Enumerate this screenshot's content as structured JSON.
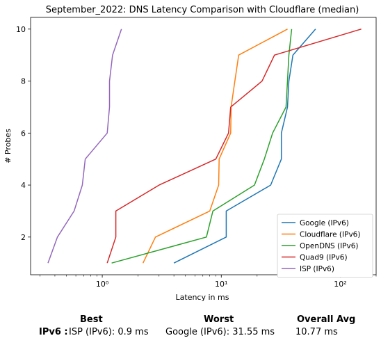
{
  "chart_data": {
    "type": "line",
    "title": "September_2022: DNS Latency Comparison with Cloudflare (median)",
    "xlabel": "Latency in ms",
    "ylabel": "# Probes",
    "xscale": "log",
    "xlim": [
      0.25,
      200
    ],
    "ylim": [
      0.55,
      10.45
    ],
    "xticks": [
      {
        "value": 1,
        "label": "10⁰"
      },
      {
        "value": 10,
        "label": "10¹"
      },
      {
        "value": 100,
        "label": "10²"
      }
    ],
    "yticks": [
      2,
      4,
      6,
      8,
      10
    ],
    "grid": false,
    "legend_position": "lower-right",
    "series": [
      {
        "name": "Google (IPv6)",
        "color": "#1f77b4",
        "x": [
          4.0,
          11.0,
          11.0,
          26.0,
          32.0,
          32.0,
          36.0,
          37.0,
          40.0,
          62.0
        ],
        "y": [
          1,
          2,
          3,
          4,
          5,
          6,
          7,
          8,
          9,
          10
        ]
      },
      {
        "name": "Cloudflare (IPv6)",
        "color": "#ff7f0e",
        "x": [
          2.2,
          2.8,
          8.0,
          9.5,
          9.6,
          12.0,
          12.1,
          13.0,
          14.0,
          36.0
        ],
        "y": [
          1,
          2,
          3,
          4,
          5,
          6,
          7,
          8,
          9,
          10
        ]
      },
      {
        "name": "OpenDNS (IPv6)",
        "color": "#2ca02c",
        "x": [
          1.2,
          7.5,
          8.5,
          19.0,
          23.0,
          27.0,
          35.0,
          36.0,
          37.0,
          39.0
        ],
        "y": [
          1,
          2,
          3,
          4,
          5,
          6,
          7,
          8,
          9,
          10
        ]
      },
      {
        "name": "Quad9 (IPv6)",
        "color": "#d62728",
        "x": [
          1.1,
          1.3,
          1.3,
          3.0,
          9.0,
          11.5,
          12.0,
          22.0,
          28.0,
          150.0
        ],
        "y": [
          1,
          2,
          3,
          4,
          5,
          6,
          7,
          8,
          9,
          10
        ]
      },
      {
        "name": "ISP (IPv6)",
        "color": "#9467bd",
        "x": [
          0.35,
          0.42,
          0.58,
          0.68,
          0.72,
          1.1,
          1.15,
          1.15,
          1.22,
          1.45
        ],
        "y": [
          1,
          2,
          3,
          4,
          5,
          6,
          7,
          8,
          9,
          10
        ]
      }
    ]
  },
  "summary": {
    "headers": {
      "best": "Best",
      "worst": "Worst",
      "overall": "Overall Avg"
    },
    "row_label": "IPv6 :",
    "best": "ISP (IPv6): 0.9 ms",
    "worst": "Google (IPv6): 31.55 ms",
    "overall": "10.77 ms"
  }
}
